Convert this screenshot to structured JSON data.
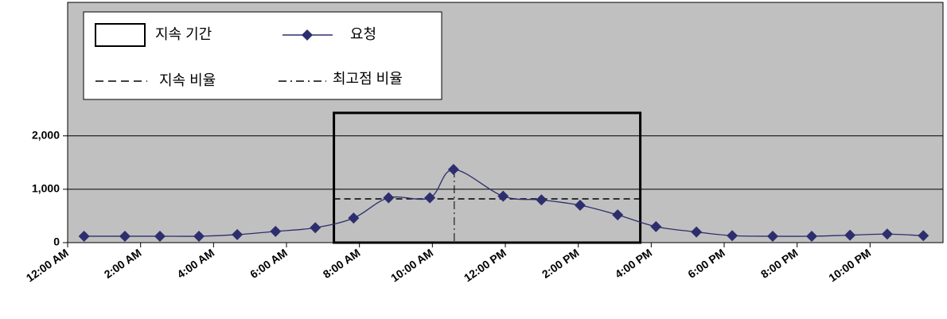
{
  "chart_data": {
    "type": "line",
    "legend": {
      "duration": "지속 기간",
      "sustained": "지속 비율",
      "peak": "최고점 비율"
    },
    "x": [
      0.45,
      1.57,
      2.53,
      3.6,
      4.65,
      5.7,
      6.79,
      7.84,
      8.8,
      9.93,
      10.58,
      11.94,
      12.99,
      14.05,
      15.08,
      16.13,
      17.24,
      18.22,
      19.33,
      20.4,
      21.45,
      22.47,
      23.46
    ],
    "series": [
      {
        "name": "요청",
        "color": "#2e2e6e",
        "values": [
          120,
          120,
          120,
          120,
          150,
          210,
          280,
          460,
          840,
          840,
          1370,
          870,
          800,
          700,
          520,
          300,
          200,
          130,
          120,
          120,
          140,
          160,
          130
        ]
      }
    ],
    "duration": {
      "start": 7.3,
      "end": 15.7,
      "height": 2430
    },
    "sustained_rate": 820,
    "peak": {
      "x": 10.6,
      "value": 1370
    },
    "xlim": [
      0,
      24
    ],
    "xticks": [
      {
        "value": 0,
        "label": "12:00 AM"
      },
      {
        "value": 2,
        "label": "2:00 AM"
      },
      {
        "value": 4,
        "label": "4:00 AM"
      },
      {
        "value": 6,
        "label": "6:00 AM"
      },
      {
        "value": 8,
        "label": "8:00 AM"
      },
      {
        "value": 10,
        "label": "10:00 AM"
      },
      {
        "value": 12,
        "label": "12:00 PM"
      },
      {
        "value": 14,
        "label": "2:00 PM"
      },
      {
        "value": 16,
        "label": "4:00 PM"
      },
      {
        "value": 18,
        "label": "6:00 PM"
      },
      {
        "value": 20,
        "label": "8:00 PM"
      },
      {
        "value": 22,
        "label": "10:00 PM"
      }
    ],
    "ylim": [
      0,
      4500
    ],
    "yticks": [
      0,
      {
        "value": 1000,
        "label": "1,000"
      },
      {
        "value": 2000,
        "label": "2,000"
      }
    ],
    "grid": true,
    "background": "#c0c0c0"
  }
}
